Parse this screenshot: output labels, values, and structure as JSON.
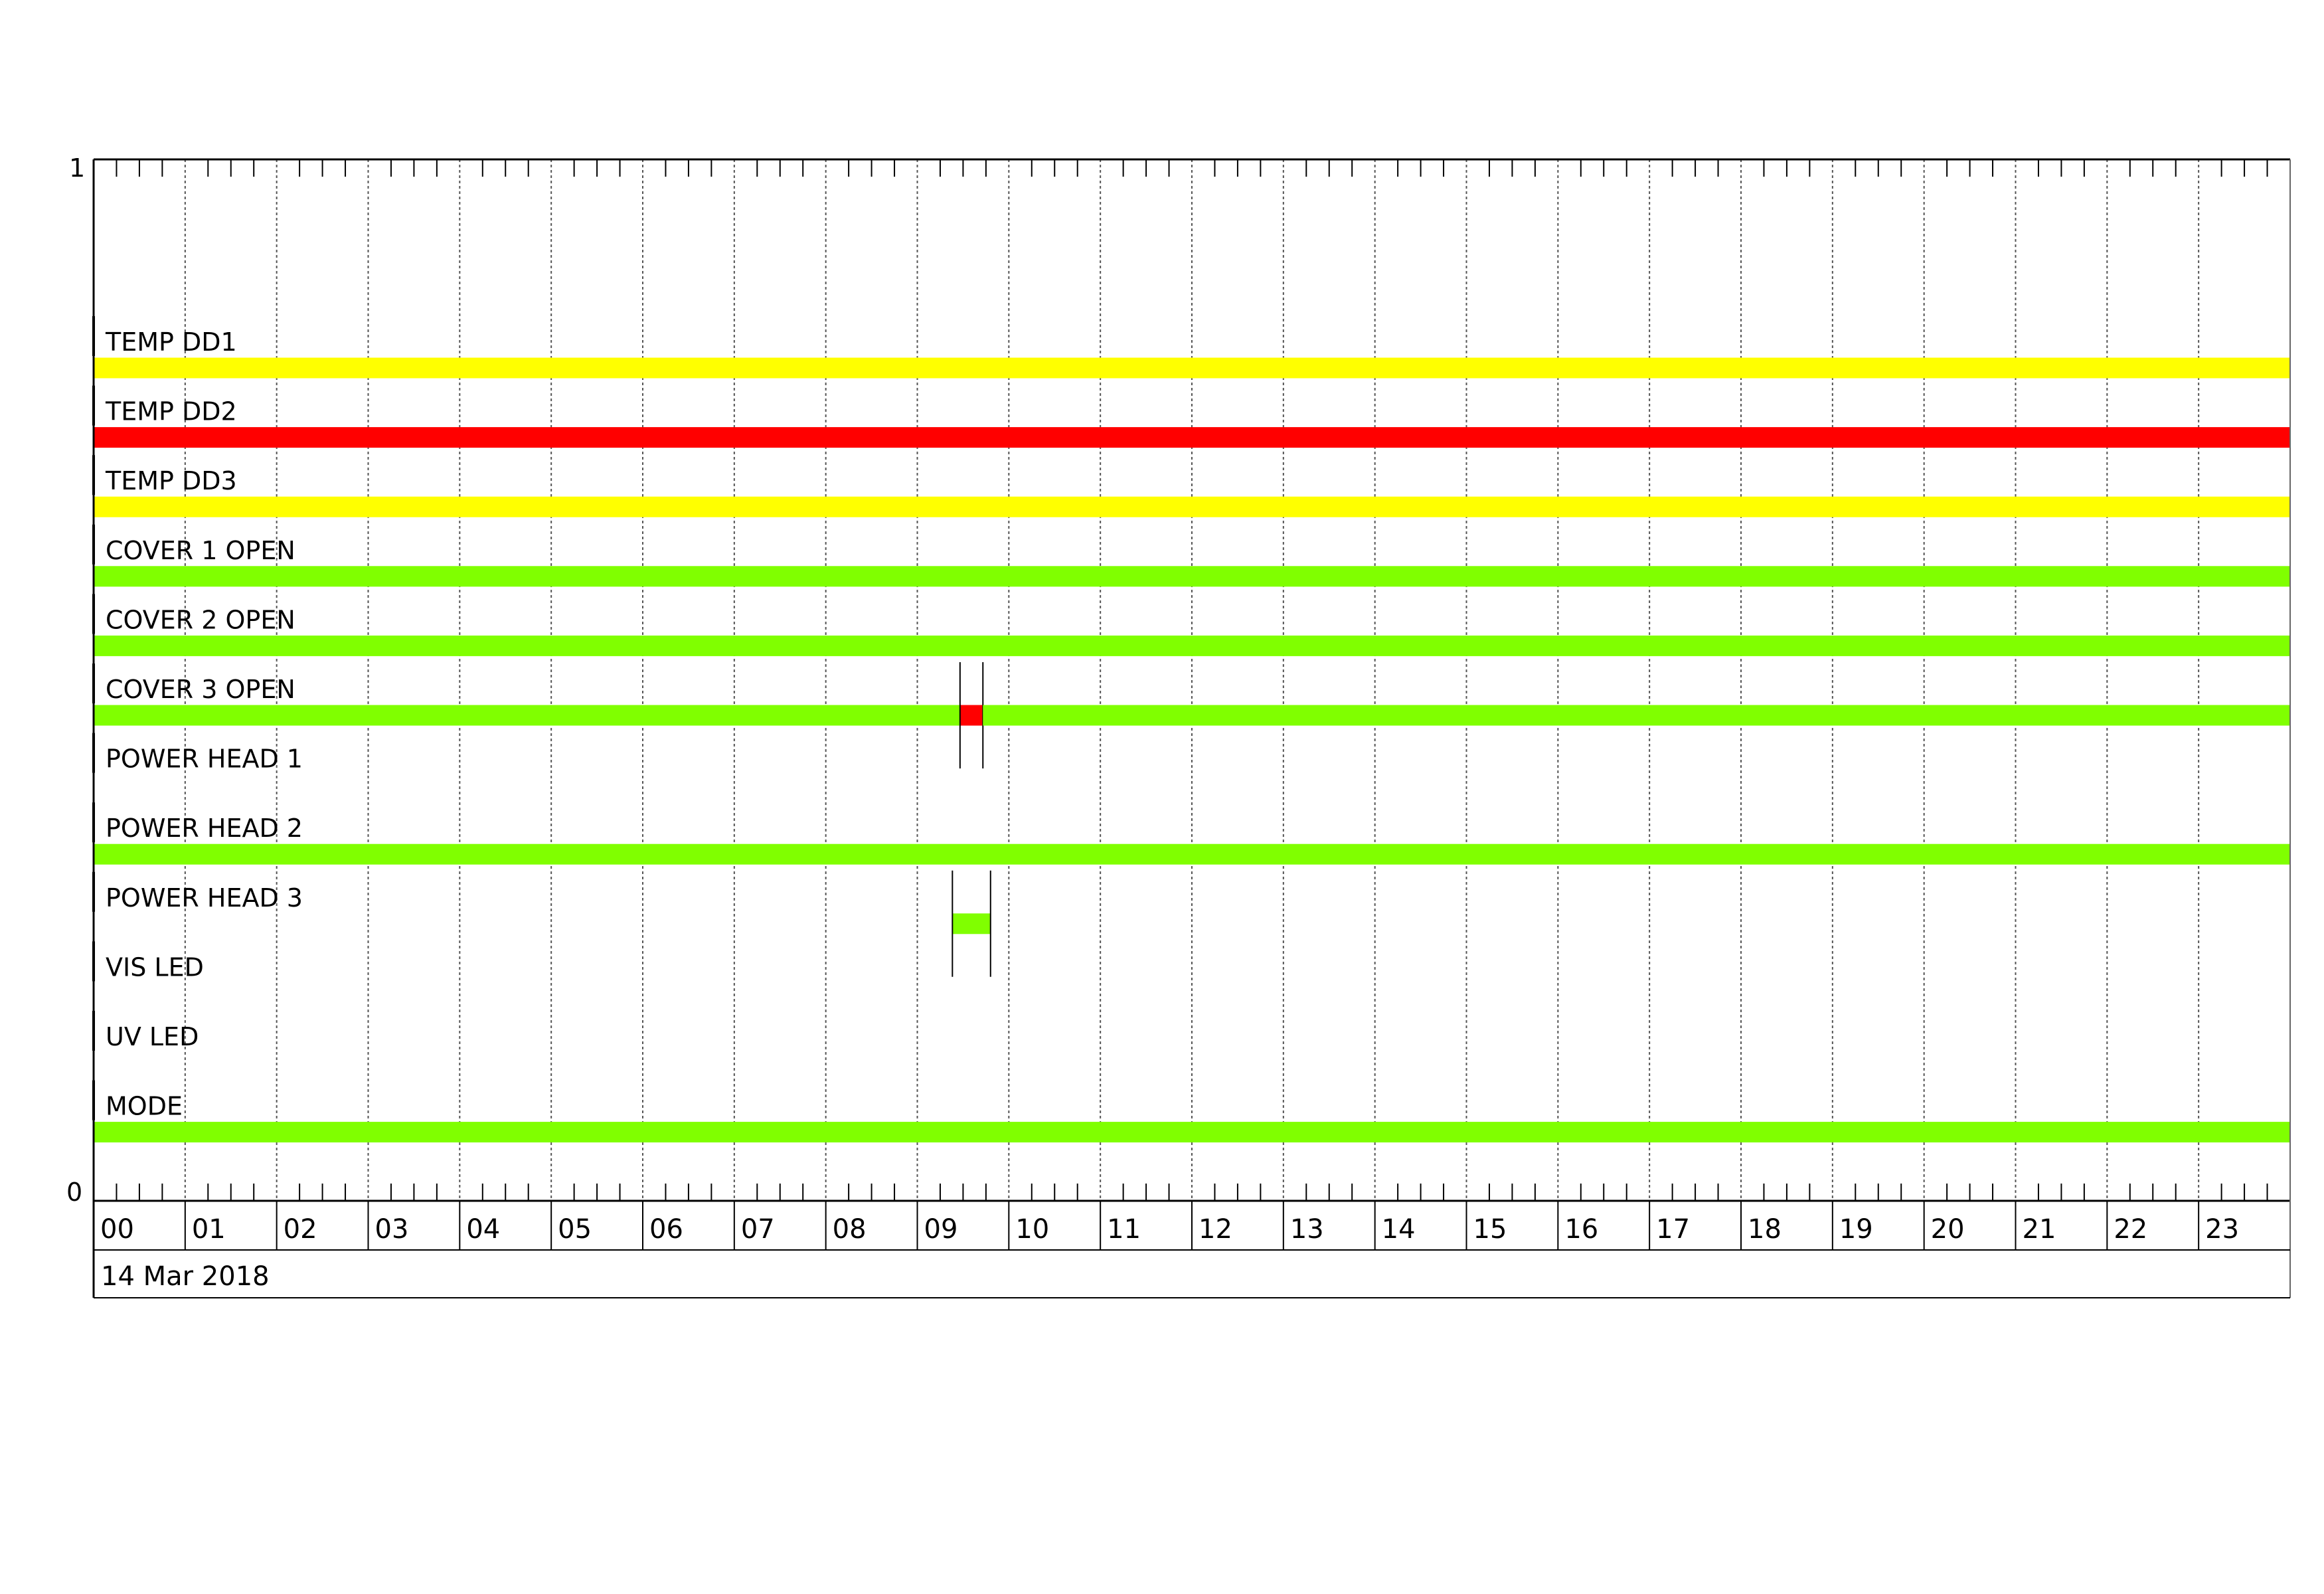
{
  "chart_data": {
    "type": "timeline",
    "x_unit": "hour of day",
    "xlim": [
      0,
      24
    ],
    "y_tick_labels": [
      "1",
      "0"
    ],
    "x_tick_labels": [
      "00",
      "01",
      "02",
      "03",
      "04",
      "05",
      "06",
      "07",
      "08",
      "09",
      "10",
      "11",
      "12",
      "13",
      "14",
      "15",
      "16",
      "17",
      "18",
      "19",
      "20",
      "21",
      "22",
      "23"
    ],
    "date_label": "14 Mar 2018",
    "grid": true,
    "colors": {
      "yellow": "#ffff00",
      "red": "#ff0000",
      "green": "#80ff00"
    },
    "rows": [
      {
        "label": "TEMP DD1",
        "segments": [
          {
            "start": "00:00",
            "end": "24:00",
            "color": "yellow"
          }
        ]
      },
      {
        "label": "TEMP DD2",
        "segments": [
          {
            "start": "00:00",
            "end": "24:00",
            "color": "red"
          }
        ]
      },
      {
        "label": "TEMP DD3",
        "segments": [
          {
            "start": "00:00",
            "end": "24:00",
            "color": "yellow"
          }
        ]
      },
      {
        "label": "COVER 1 OPEN",
        "segments": [
          {
            "start": "00:00",
            "end": "24:00",
            "color": "green"
          }
        ]
      },
      {
        "label": "COVER 2 OPEN",
        "segments": [
          {
            "start": "00:00",
            "end": "24:00",
            "color": "green"
          }
        ]
      },
      {
        "label": "COVER 3 OPEN",
        "segments": [
          {
            "start": "00:00",
            "end": "09:28",
            "color": "green"
          },
          {
            "start": "09:28",
            "end": "09:43",
            "color": "red",
            "marked": true
          },
          {
            "start": "09:43",
            "end": "24:00",
            "color": "green"
          }
        ]
      },
      {
        "label": "POWER HEAD 1",
        "segments": []
      },
      {
        "label": "POWER HEAD 2",
        "segments": [
          {
            "start": "00:00",
            "end": "24:00",
            "color": "green"
          }
        ]
      },
      {
        "label": "POWER HEAD 3",
        "segments": [
          {
            "start": "09:23",
            "end": "09:48",
            "color": "green",
            "marked": true
          }
        ]
      },
      {
        "label": "VIS LED",
        "segments": []
      },
      {
        "label": "UV LED",
        "segments": []
      },
      {
        "label": "MODE",
        "segments": [
          {
            "start": "00:00",
            "end": "24:00",
            "color": "green"
          }
        ]
      }
    ]
  }
}
